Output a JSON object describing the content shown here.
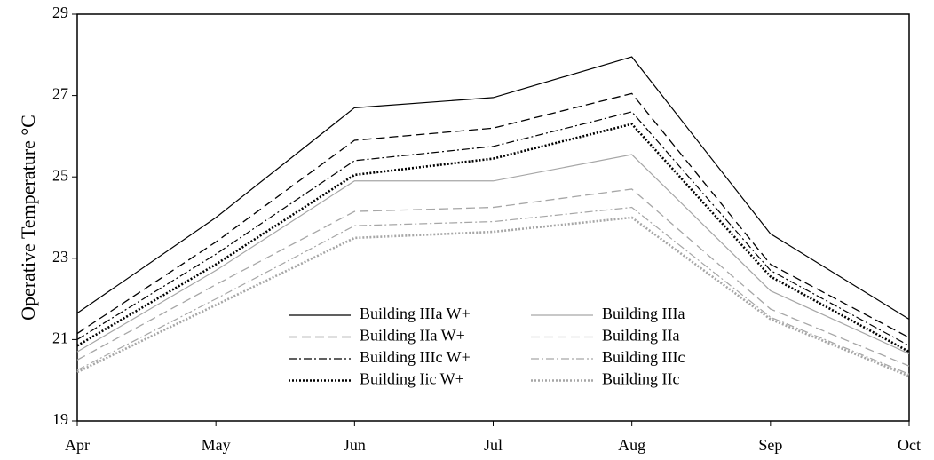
{
  "chart_data": {
    "type": "line",
    "y_label": "Operative Temperature °C",
    "categories": [
      "Apr",
      "May",
      "Jun",
      "Jul",
      "Aug",
      "Sep",
      "Oct"
    ],
    "ylim": [
      19,
      29
    ],
    "yticks": [
      19,
      21,
      23,
      25,
      27,
      29
    ],
    "legend": "lower center",
    "series": [
      {
        "name": "Building IIIa W+",
        "color": "#000000",
        "values": [
          21.65,
          24.0,
          26.7,
          26.95,
          27.95,
          23.6,
          21.5
        ]
      },
      {
        "name": "Building IIIa",
        "color": "#a6a6a6",
        "values": [
          20.7,
          22.7,
          24.9,
          24.9,
          25.55,
          22.2,
          20.65
        ]
      },
      {
        "name": "Building IIa W+",
        "color": "#000000",
        "values": [
          21.15,
          23.4,
          25.9,
          26.2,
          27.05,
          22.85,
          21.05
        ]
      },
      {
        "name": "Building IIa",
        "color": "#a6a6a6",
        "values": [
          20.5,
          22.35,
          24.15,
          24.25,
          24.7,
          21.75,
          20.35
        ]
      },
      {
        "name": "Building IIIc W+",
        "color": "#000000",
        "values": [
          21.0,
          23.1,
          25.4,
          25.75,
          26.6,
          22.7,
          20.85
        ]
      },
      {
        "name": "Building IIIc",
        "color": "#a6a6a6",
        "values": [
          20.25,
          22.0,
          23.8,
          23.9,
          24.25,
          21.55,
          20.15
        ]
      },
      {
        "name": "Building Iic W+",
        "color": "#000000",
        "values": [
          20.85,
          22.85,
          25.05,
          25.45,
          26.3,
          22.55,
          20.7
        ]
      },
      {
        "name": "Building IIc",
        "color": "#a6a6a6",
        "values": [
          20.2,
          21.85,
          23.5,
          23.65,
          24.0,
          21.5,
          20.1
        ]
      }
    ]
  }
}
